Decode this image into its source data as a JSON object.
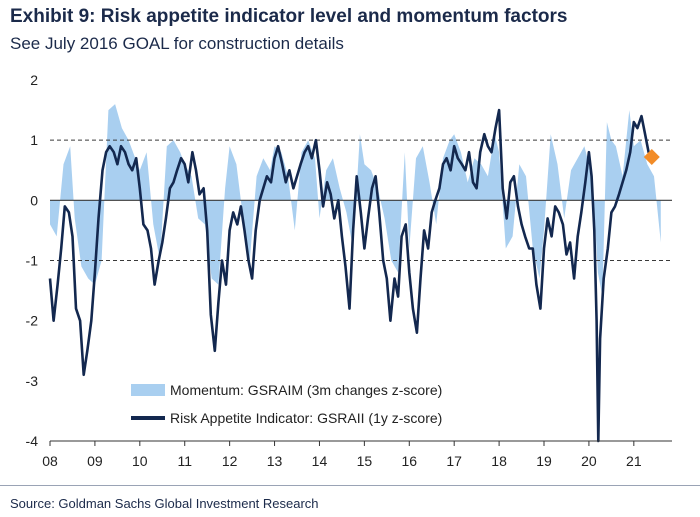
{
  "header": {
    "title": "Exhibit 9: Risk appetite indicator level and momentum factors",
    "subtitle": "See July 2016 GOAL for construction details"
  },
  "footer": {
    "source": "Source: Goldman Sachs Global Investment Research"
  },
  "colors": {
    "indicator": "#13284f",
    "momentum": "#a9cff0",
    "marker": "#f28c28",
    "reference": "#3a3a3a"
  },
  "chart_data": {
    "type": "area",
    "xlabel": "",
    "ylabel": "",
    "xlim": [
      2008.0,
      2021.85
    ],
    "ylim": [
      -4,
      2
    ],
    "x_ticks": [
      {
        "label": "08",
        "value": 2008
      },
      {
        "label": "09",
        "value": 2009
      },
      {
        "label": "10",
        "value": 2010
      },
      {
        "label": "11",
        "value": 2011
      },
      {
        "label": "12",
        "value": 2012
      },
      {
        "label": "13",
        "value": 2013
      },
      {
        "label": "14",
        "value": 2014
      },
      {
        "label": "15",
        "value": 2015
      },
      {
        "label": "16",
        "value": 2016
      },
      {
        "label": "17",
        "value": 2017
      },
      {
        "label": "18",
        "value": 2018
      },
      {
        "label": "19",
        "value": 2019
      },
      {
        "label": "20",
        "value": 2020
      },
      {
        "label": "21",
        "value": 2021
      }
    ],
    "y_ticks": [
      {
        "label": "2",
        "value": 2
      },
      {
        "label": "1",
        "value": 1
      },
      {
        "label": "0",
        "value": 0
      },
      {
        "label": "-1",
        "value": -1
      },
      {
        "label": "-2",
        "value": -2
      },
      {
        "label": "-3",
        "value": -3
      },
      {
        "label": "-4",
        "value": -4
      }
    ],
    "reference_lines": [
      1,
      -1
    ],
    "zero_line": 0,
    "legend": {
      "position": "bottom-center"
    },
    "series": [
      {
        "name": "Momentum: GSRAIM (3m changes z-score)",
        "kind": "area",
        "x": [
          2008.0,
          2008.15,
          2008.3,
          2008.45,
          2008.55,
          2008.7,
          2008.85,
          2009.0,
          2009.15,
          2009.3,
          2009.45,
          2009.6,
          2009.75,
          2009.9,
          2010.0,
          2010.15,
          2010.3,
          2010.45,
          2010.6,
          2010.75,
          2010.9,
          2011.0,
          2011.15,
          2011.3,
          2011.45,
          2011.6,
          2011.75,
          2011.9,
          2012.0,
          2012.15,
          2012.3,
          2012.45,
          2012.6,
          2012.75,
          2012.9,
          2013.0,
          2013.15,
          2013.3,
          2013.45,
          2013.6,
          2013.75,
          2013.9,
          2014.0,
          2014.15,
          2014.3,
          2014.45,
          2014.6,
          2014.75,
          2014.9,
          2015.0,
          2015.15,
          2015.3,
          2015.45,
          2015.6,
          2015.75,
          2015.9,
          2016.0,
          2016.15,
          2016.3,
          2016.45,
          2016.6,
          2016.75,
          2016.9,
          2017.0,
          2017.15,
          2017.3,
          2017.45,
          2017.6,
          2017.75,
          2017.9,
          2018.0,
          2018.15,
          2018.3,
          2018.45,
          2018.6,
          2018.75,
          2018.9,
          2019.0,
          2019.15,
          2019.3,
          2019.45,
          2019.6,
          2019.75,
          2019.9,
          2020.0,
          2020.1,
          2020.2,
          2020.3,
          2020.4,
          2020.5,
          2020.6,
          2020.75,
          2020.9,
          2021.0,
          2021.15,
          2021.3,
          2021.45,
          2021.6
        ],
        "values": [
          -0.4,
          -0.6,
          0.6,
          0.9,
          -0.3,
          -1.1,
          -1.3,
          -1.4,
          -1.0,
          1.5,
          1.6,
          1.2,
          1.0,
          0.7,
          0.5,
          0.8,
          -0.4,
          -1.0,
          0.9,
          1.0,
          0.8,
          0.6,
          0.4,
          -0.3,
          -0.4,
          -1.3,
          -1.4,
          0.2,
          0.9,
          0.6,
          -0.3,
          -1.0,
          0.4,
          0.7,
          0.5,
          0.9,
          0.8,
          0.4,
          -0.5,
          0.8,
          1.0,
          0.7,
          -0.3,
          0.5,
          0.7,
          0.2,
          -0.2,
          -0.8,
          1.1,
          0.6,
          0.5,
          0.2,
          -0.3,
          -1.0,
          -1.2,
          0.8,
          -0.8,
          0.7,
          0.9,
          0.3,
          -0.4,
          0.7,
          1.0,
          1.1,
          0.8,
          0.3,
          0.7,
          0.6,
          0.4,
          1.1,
          0.8,
          -0.8,
          -0.6,
          0.6,
          0.4,
          -0.8,
          -1.3,
          -0.5,
          1.1,
          0.6,
          -0.3,
          0.5,
          0.7,
          0.9,
          0.6,
          0.1,
          -1.2,
          -1.6,
          1.3,
          1.0,
          0.9,
          0.4,
          1.5,
          0.9,
          1.0,
          0.6,
          0.4,
          -0.7
        ]
      },
      {
        "name": "Risk Appetite Indicator: GSRAII (1y z-score)",
        "kind": "line",
        "x": [
          2008.0,
          2008.08,
          2008.17,
          2008.25,
          2008.33,
          2008.42,
          2008.5,
          2008.58,
          2008.67,
          2008.75,
          2008.83,
          2008.92,
          2009.0,
          2009.08,
          2009.17,
          2009.25,
          2009.33,
          2009.42,
          2009.5,
          2009.58,
          2009.67,
          2009.75,
          2009.83,
          2009.92,
          2010.0,
          2010.08,
          2010.17,
          2010.25,
          2010.33,
          2010.42,
          2010.5,
          2010.58,
          2010.67,
          2010.75,
          2010.83,
          2010.92,
          2011.0,
          2011.08,
          2011.17,
          2011.25,
          2011.33,
          2011.42,
          2011.5,
          2011.58,
          2011.67,
          2011.75,
          2011.83,
          2011.92,
          2012.0,
          2012.08,
          2012.17,
          2012.25,
          2012.33,
          2012.42,
          2012.5,
          2012.58,
          2012.67,
          2012.75,
          2012.83,
          2012.92,
          2013.0,
          2013.08,
          2013.17,
          2013.25,
          2013.33,
          2013.42,
          2013.5,
          2013.58,
          2013.67,
          2013.75,
          2013.83,
          2013.92,
          2014.0,
          2014.08,
          2014.17,
          2014.25,
          2014.33,
          2014.42,
          2014.5,
          2014.58,
          2014.67,
          2014.75,
          2014.83,
          2014.92,
          2015.0,
          2015.08,
          2015.17,
          2015.25,
          2015.33,
          2015.42,
          2015.5,
          2015.58,
          2015.67,
          2015.75,
          2015.83,
          2015.92,
          2016.0,
          2016.08,
          2016.17,
          2016.25,
          2016.33,
          2016.42,
          2016.5,
          2016.58,
          2016.67,
          2016.75,
          2016.83,
          2016.92,
          2017.0,
          2017.08,
          2017.17,
          2017.25,
          2017.33,
          2017.42,
          2017.5,
          2017.58,
          2017.67,
          2017.75,
          2017.83,
          2017.92,
          2018.0,
          2018.08,
          2018.17,
          2018.25,
          2018.33,
          2018.42,
          2018.5,
          2018.58,
          2018.67,
          2018.75,
          2018.83,
          2018.92,
          2019.0,
          2019.08,
          2019.17,
          2019.25,
          2019.33,
          2019.42,
          2019.5,
          2019.58,
          2019.67,
          2019.75,
          2019.83,
          2019.92,
          2020.0,
          2020.06,
          2020.12,
          2020.17,
          2020.21,
          2020.25,
          2020.33,
          2020.42,
          2020.5,
          2020.58,
          2020.67,
          2020.75,
          2020.83,
          2020.92,
          2021.0,
          2021.08,
          2021.17,
          2021.25,
          2021.33,
          2021.4
        ],
        "values": [
          -1.3,
          -2.0,
          -1.4,
          -0.8,
          -0.1,
          -0.2,
          -0.6,
          -1.8,
          -2.0,
          -2.9,
          -2.5,
          -2.0,
          -1.2,
          -0.3,
          0.5,
          0.8,
          0.9,
          0.8,
          0.6,
          0.9,
          0.8,
          0.6,
          0.5,
          0.7,
          0.2,
          -0.4,
          -0.5,
          -0.8,
          -1.4,
          -1.0,
          -0.7,
          -0.3,
          0.2,
          0.3,
          0.5,
          0.7,
          0.6,
          0.3,
          0.8,
          0.5,
          0.1,
          0.2,
          -0.5,
          -1.9,
          -2.5,
          -1.7,
          -1.0,
          -1.4,
          -0.5,
          -0.2,
          -0.4,
          -0.1,
          -0.5,
          -1.0,
          -1.3,
          -0.5,
          0.0,
          0.2,
          0.4,
          0.3,
          0.7,
          0.9,
          0.6,
          0.3,
          0.5,
          0.2,
          0.4,
          0.6,
          0.8,
          0.9,
          0.7,
          1.0,
          0.5,
          -0.1,
          0.3,
          0.1,
          -0.3,
          0.0,
          -0.6,
          -1.1,
          -1.8,
          -0.5,
          0.4,
          -0.2,
          -0.8,
          -0.3,
          0.2,
          0.4,
          -0.2,
          -1.0,
          -1.3,
          -2.0,
          -1.3,
          -1.6,
          -0.6,
          -0.4,
          -1.2,
          -1.8,
          -2.2,
          -1.3,
          -0.5,
          -0.8,
          -0.2,
          0.0,
          0.2,
          0.6,
          0.7,
          0.5,
          0.9,
          0.7,
          0.6,
          0.5,
          0.8,
          0.3,
          0.2,
          0.8,
          1.1,
          0.9,
          0.8,
          1.2,
          1.5,
          0.2,
          -0.3,
          0.3,
          0.4,
          -0.1,
          -0.4,
          -0.6,
          -0.8,
          -0.8,
          -1.4,
          -1.8,
          -0.8,
          -0.3,
          -0.6,
          -0.1,
          -0.2,
          -0.4,
          -0.9,
          -0.7,
          -1.3,
          -0.6,
          -0.2,
          0.3,
          0.8,
          0.4,
          -0.5,
          -2.0,
          -4.0,
          -2.3,
          -1.3,
          -0.8,
          -0.2,
          -0.1,
          0.1,
          0.3,
          0.5,
          0.8,
          1.3,
          1.2,
          1.4,
          1.1,
          0.8,
          0.72
        ]
      }
    ],
    "marker": {
      "x": 2021.4,
      "y": 0.72,
      "shape": "diamond"
    }
  }
}
